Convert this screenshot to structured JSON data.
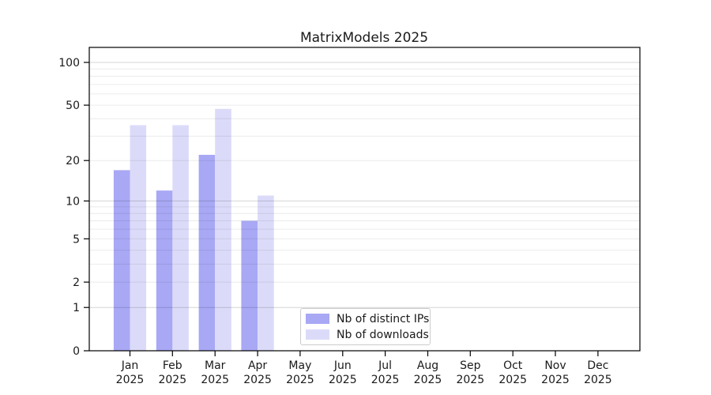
{
  "chart_data": {
    "type": "bar",
    "title": "MatrixModels 2025",
    "year": "2025",
    "months": [
      "Jan",
      "Feb",
      "Mar",
      "Apr",
      "May",
      "Jun",
      "Jul",
      "Aug",
      "Sep",
      "Oct",
      "Nov",
      "Dec"
    ],
    "categories": [
      "Jan 2025",
      "Feb 2025",
      "Mar 2025",
      "Apr 2025",
      "May 2025",
      "Jun 2025",
      "Jul 2025",
      "Aug 2025",
      "Sep 2025",
      "Oct 2025",
      "Nov 2025",
      "Dec 2025"
    ],
    "series": [
      {
        "name": "Nb of distinct IPs",
        "color": "#a8a8f5",
        "values": [
          17,
          12,
          22,
          7,
          null,
          null,
          null,
          null,
          null,
          null,
          null,
          null
        ]
      },
      {
        "name": "Nb of downloads",
        "color": "#dbdbf9",
        "values": [
          36,
          36,
          47,
          11,
          null,
          null,
          null,
          null,
          null,
          null,
          null,
          null
        ]
      }
    ],
    "y_ticks": [
      0,
      1,
      2,
      5,
      10,
      20,
      50,
      100
    ],
    "y_scale": "log1p",
    "ylim": [
      0,
      125
    ],
    "xlabel": "",
    "ylabel": "",
    "grid": "horizontal, minor+major",
    "legend_position": "lower center inside axes"
  },
  "colors": {
    "axis": "#000000",
    "text": "#1a1a1a",
    "grid_minor_alpha": "rgba(0,0,0,0.08)",
    "grid_major_alpha": "rgba(0,0,0,0.17)",
    "legend_border": "#cccccc",
    "legend_bg": "#ffffff"
  }
}
